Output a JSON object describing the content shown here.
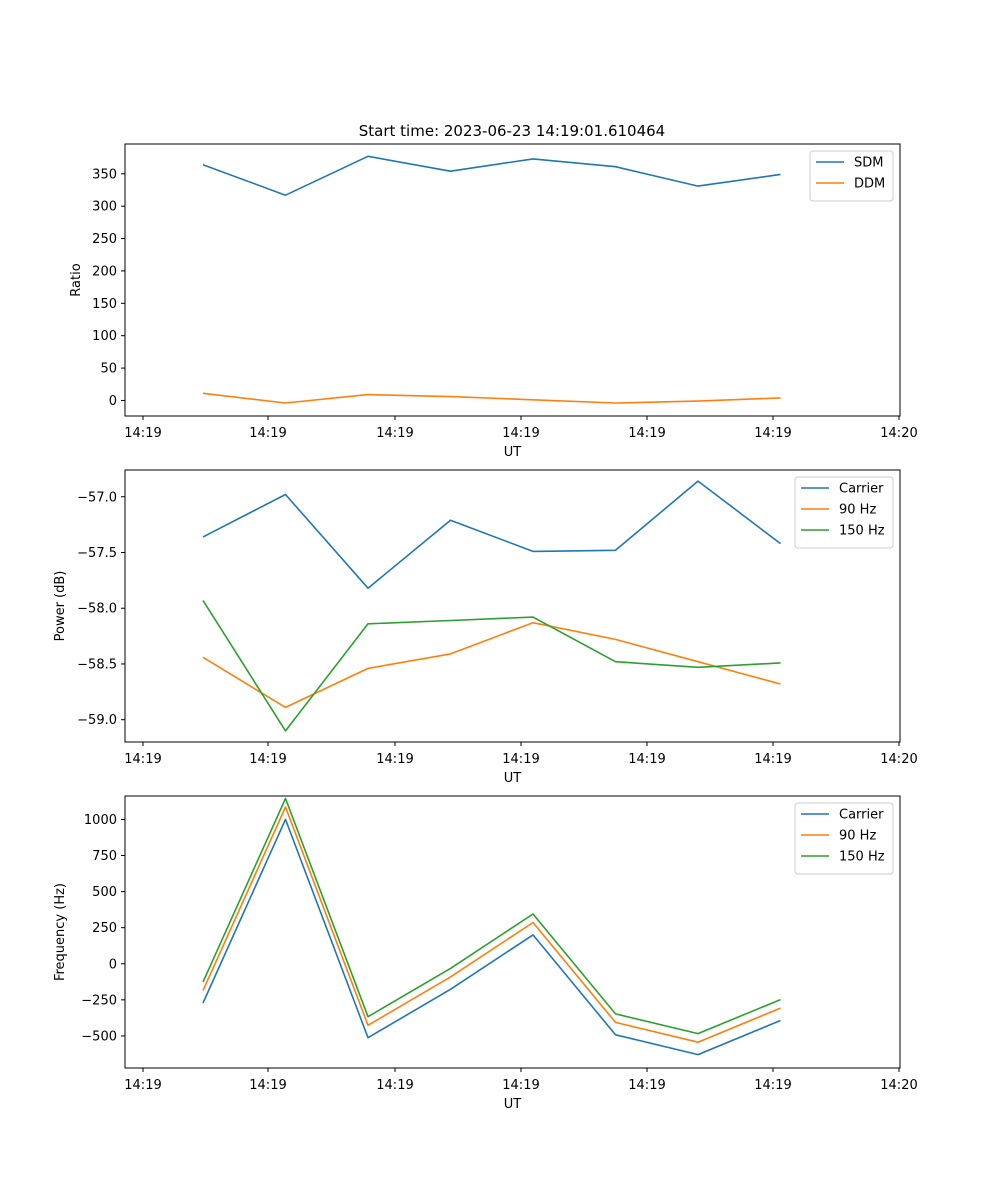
{
  "figure": {
    "title": "Start time: 2023-06-23 14:19:01.610464"
  },
  "colors": {
    "blue": "#1f77b4",
    "orange": "#ff7f0e",
    "green": "#2ca02c"
  },
  "chart_data": [
    {
      "type": "line",
      "title": "Start time: 2023-06-23 14:19:01.610464",
      "xlabel": "UT",
      "ylabel": "Ratio",
      "x_tick_labels": [
        "14:19",
        "14:19",
        "14:19",
        "14:19",
        "14:19",
        "14:19",
        "14:20"
      ],
      "y_ticks": [
        0,
        50,
        100,
        150,
        200,
        250,
        300,
        350
      ],
      "ylim": [
        -24,
        396
      ],
      "legend_position": "top-right",
      "grid": false,
      "series": [
        {
          "name": "SDM",
          "color": "#1f77b4",
          "values": [
            364,
            317,
            377,
            354,
            373,
            361,
            331,
            349
          ]
        },
        {
          "name": "DDM",
          "color": "#ff7f0e",
          "values": [
            11,
            -4,
            9,
            6,
            1,
            -4,
            -1,
            4
          ]
        }
      ]
    },
    {
      "type": "line",
      "title": "",
      "xlabel": "UT",
      "ylabel": "Power (dB)",
      "x_tick_labels": [
        "14:19",
        "14:19",
        "14:19",
        "14:19",
        "14:19",
        "14:19",
        "14:20"
      ],
      "y_ticks": [
        -57.0,
        -57.5,
        -58.0,
        -58.5,
        -59.0
      ],
      "y_tick_labels": [
        "−57.0",
        "−57.5",
        "−58.0",
        "−58.5",
        "−59.0"
      ],
      "ylim": [
        -59.2,
        -56.76
      ],
      "legend_position": "top-right",
      "grid": false,
      "series": [
        {
          "name": "Carrier",
          "color": "#1f77b4",
          "values": [
            -57.36,
            -56.98,
            -57.82,
            -57.21,
            -57.49,
            -57.48,
            -56.86,
            -57.42
          ]
        },
        {
          "name": "90 Hz",
          "color": "#ff7f0e",
          "values": [
            -58.44,
            -58.89,
            -58.54,
            -58.41,
            -58.13,
            -58.28,
            -58.48,
            -58.68
          ]
        },
        {
          "name": "150 Hz",
          "color": "#2ca02c",
          "values": [
            -57.93,
            -59.1,
            -58.14,
            -58.11,
            -58.08,
            -58.48,
            -58.53,
            -58.49
          ]
        }
      ]
    },
    {
      "type": "line",
      "title": "",
      "xlabel": "UT",
      "ylabel": "Frequency (Hz)",
      "x_tick_labels": [
        "14:19",
        "14:19",
        "14:19",
        "14:19",
        "14:19",
        "14:19",
        "14:20"
      ],
      "y_ticks": [
        -500,
        -250,
        0,
        250,
        500,
        750,
        1000
      ],
      "y_tick_labels": [
        "−500",
        "−250",
        "0",
        "250",
        "500",
        "750",
        "1000"
      ],
      "ylim": [
        -722,
        1162
      ],
      "legend_position": "top-right",
      "grid": false,
      "series": [
        {
          "name": "Carrier",
          "color": "#1f77b4",
          "values": [
            -272,
            1000,
            -512,
            -177,
            200,
            -492,
            -629,
            -393
          ]
        },
        {
          "name": "90 Hz",
          "color": "#ff7f0e",
          "values": [
            -186,
            1086,
            -426,
            -91,
            286,
            -406,
            -543,
            -307
          ]
        },
        {
          "name": "150 Hz",
          "color": "#2ca02c",
          "values": [
            -127,
            1145,
            -367,
            -32,
            345,
            -347,
            -484,
            -248
          ]
        }
      ]
    }
  ]
}
